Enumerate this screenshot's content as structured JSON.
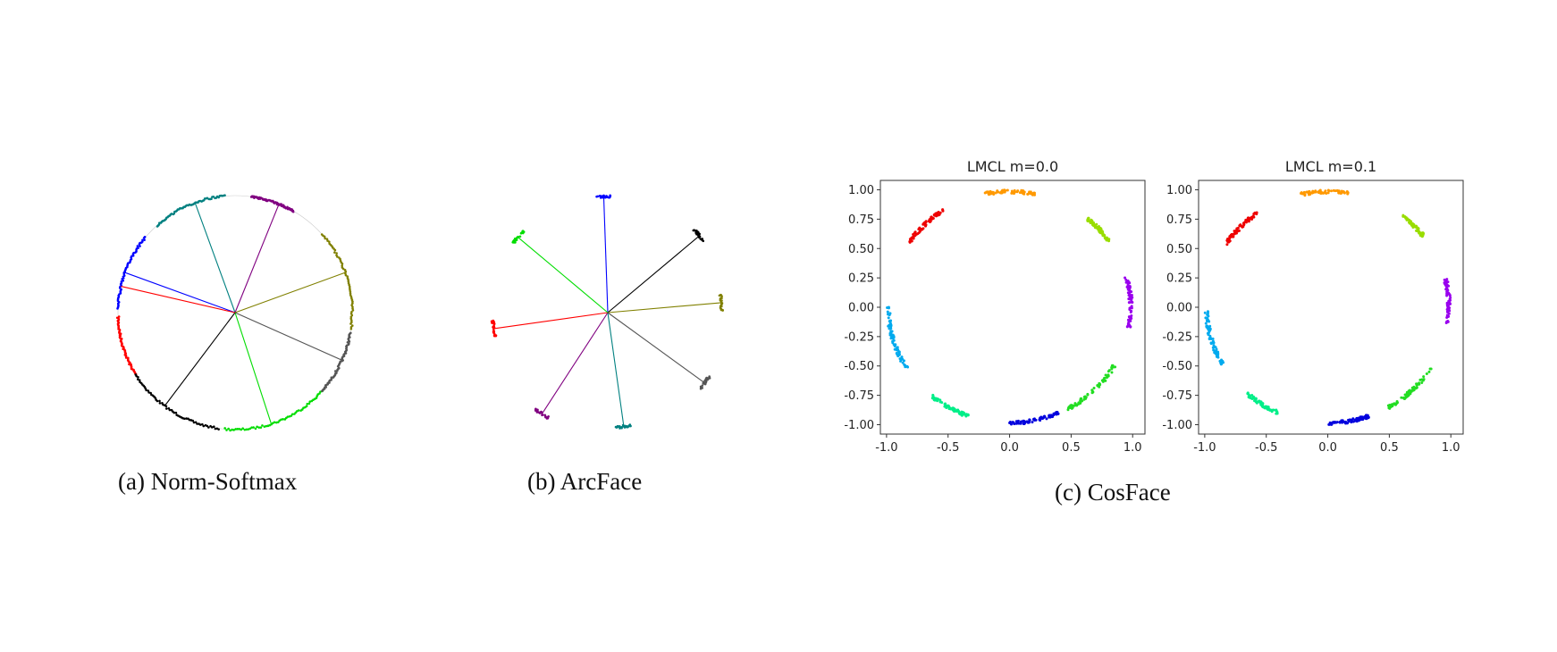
{
  "captions": {
    "a": "(a)  Norm-Softmax",
    "b": "(b)  ArcFace",
    "c": "(c) CosFace"
  },
  "chart_data": [
    {
      "type": "scatter",
      "subplot": "a",
      "title": "",
      "shape": "unit-circle with class-center rays",
      "rays": [
        {
          "color": "#0000ff",
          "angle_deg": 160
        },
        {
          "color": "#008080",
          "angle_deg": 110
        },
        {
          "color": "#800080",
          "angle_deg": 68
        },
        {
          "color": "#808000",
          "angle_deg": 20
        },
        {
          "color": "#555555",
          "angle_deg": -24
        },
        {
          "color": "#00dd00",
          "angle_deg": -72
        },
        {
          "color": "#000000",
          "angle_deg": -127
        },
        {
          "color": "#ff0000",
          "angle_deg": -193
        }
      ],
      "arcs": [
        {
          "color": "#ff0000",
          "from_deg": 182,
          "to_deg": 212
        },
        {
          "color": "#000000",
          "from_deg": 212,
          "to_deg": 262
        },
        {
          "color": "#00dd00",
          "from_deg": 265,
          "to_deg": 318
        },
        {
          "color": "#555555",
          "from_deg": 318,
          "to_deg": 350
        },
        {
          "color": "#808000",
          "from_deg": -8,
          "to_deg": 42
        },
        {
          "color": "#800080",
          "from_deg": 60,
          "to_deg": 82
        },
        {
          "color": "#008080",
          "from_deg": 95,
          "to_deg": 132
        },
        {
          "color": "#0000ff",
          "from_deg": 140,
          "to_deg": 178
        }
      ]
    },
    {
      "type": "scatter",
      "subplot": "b",
      "title": "",
      "shape": "class-center rays with narrow end clusters",
      "rays": [
        {
          "color": "#0000ff",
          "angle_deg": 92,
          "length": 1.0
        },
        {
          "color": "#000000",
          "angle_deg": 40,
          "length": 1.03
        },
        {
          "color": "#808000",
          "angle_deg": 5,
          "length": 0.98
        },
        {
          "color": "#555555",
          "angle_deg": -36,
          "length": 1.03
        },
        {
          "color": "#008080",
          "angle_deg": -82,
          "length": 0.99
        },
        {
          "color": "#800080",
          "angle_deg": -123,
          "length": 1.04
        },
        {
          "color": "#ff0000",
          "angle_deg": -172,
          "length": 0.99
        },
        {
          "color": "#00dd00",
          "angle_deg": 140,
          "length": 1.01
        }
      ]
    },
    {
      "type": "scatter",
      "subplot": "c1",
      "title": "LMCL m=0.0",
      "xlim": [
        -1.05,
        1.1
      ],
      "ylim": [
        -1.08,
        1.08
      ],
      "xticks": [
        "-1.0",
        "-0.5",
        "0.0",
        "0.5",
        "1.0"
      ],
      "yticks": [
        "1.00",
        "0.75",
        "0.50",
        "0.25",
        "0.00",
        "-0.25",
        "-0.50",
        "-0.75",
        "-1.00"
      ],
      "clusters": [
        {
          "color": "#ff9900",
          "from_deg": 78,
          "to_deg": 102
        },
        {
          "color": "#99dd00",
          "from_deg": 35,
          "to_deg": 50
        },
        {
          "color": "#9900ee",
          "from_deg": -10,
          "to_deg": 15
        },
        {
          "color": "#22dd22",
          "from_deg": -62,
          "to_deg": -30
        },
        {
          "color": "#0000dd",
          "from_deg": -90,
          "to_deg": -66
        },
        {
          "color": "#00ee88",
          "from_deg": -130,
          "to_deg": -110
        },
        {
          "color": "#00aaee",
          "from_deg": -180,
          "to_deg": -148
        },
        {
          "color": "#ee0000",
          "from_deg": 123,
          "to_deg": 146
        }
      ]
    },
    {
      "type": "scatter",
      "subplot": "c2",
      "title": "LMCL m=0.1",
      "xlim": [
        -1.05,
        1.1
      ],
      "ylim": [
        -1.08,
        1.08
      ],
      "xticks": [
        "-1.0",
        "-0.5",
        "0.0",
        "0.5",
        "1.0"
      ],
      "yticks": [
        "1.00",
        "0.75",
        "0.50",
        "0.25",
        "0.00",
        "-0.25",
        "-0.50",
        "-0.75",
        "-1.00"
      ],
      "clusters": [
        {
          "color": "#ff9900",
          "from_deg": 80,
          "to_deg": 103
        },
        {
          "color": "#99dd00",
          "from_deg": 38,
          "to_deg": 52
        },
        {
          "color": "#9900ee",
          "from_deg": -8,
          "to_deg": 14
        },
        {
          "color": "#22dd22",
          "from_deg": -60,
          "to_deg": -32
        },
        {
          "color": "#0000dd",
          "from_deg": -90,
          "to_deg": -70
        },
        {
          "color": "#00ee88",
          "from_deg": -132,
          "to_deg": -114
        },
        {
          "color": "#00aaee",
          "from_deg": -178,
          "to_deg": -150
        },
        {
          "color": "#ee0000",
          "from_deg": 125,
          "to_deg": 147
        }
      ]
    }
  ]
}
